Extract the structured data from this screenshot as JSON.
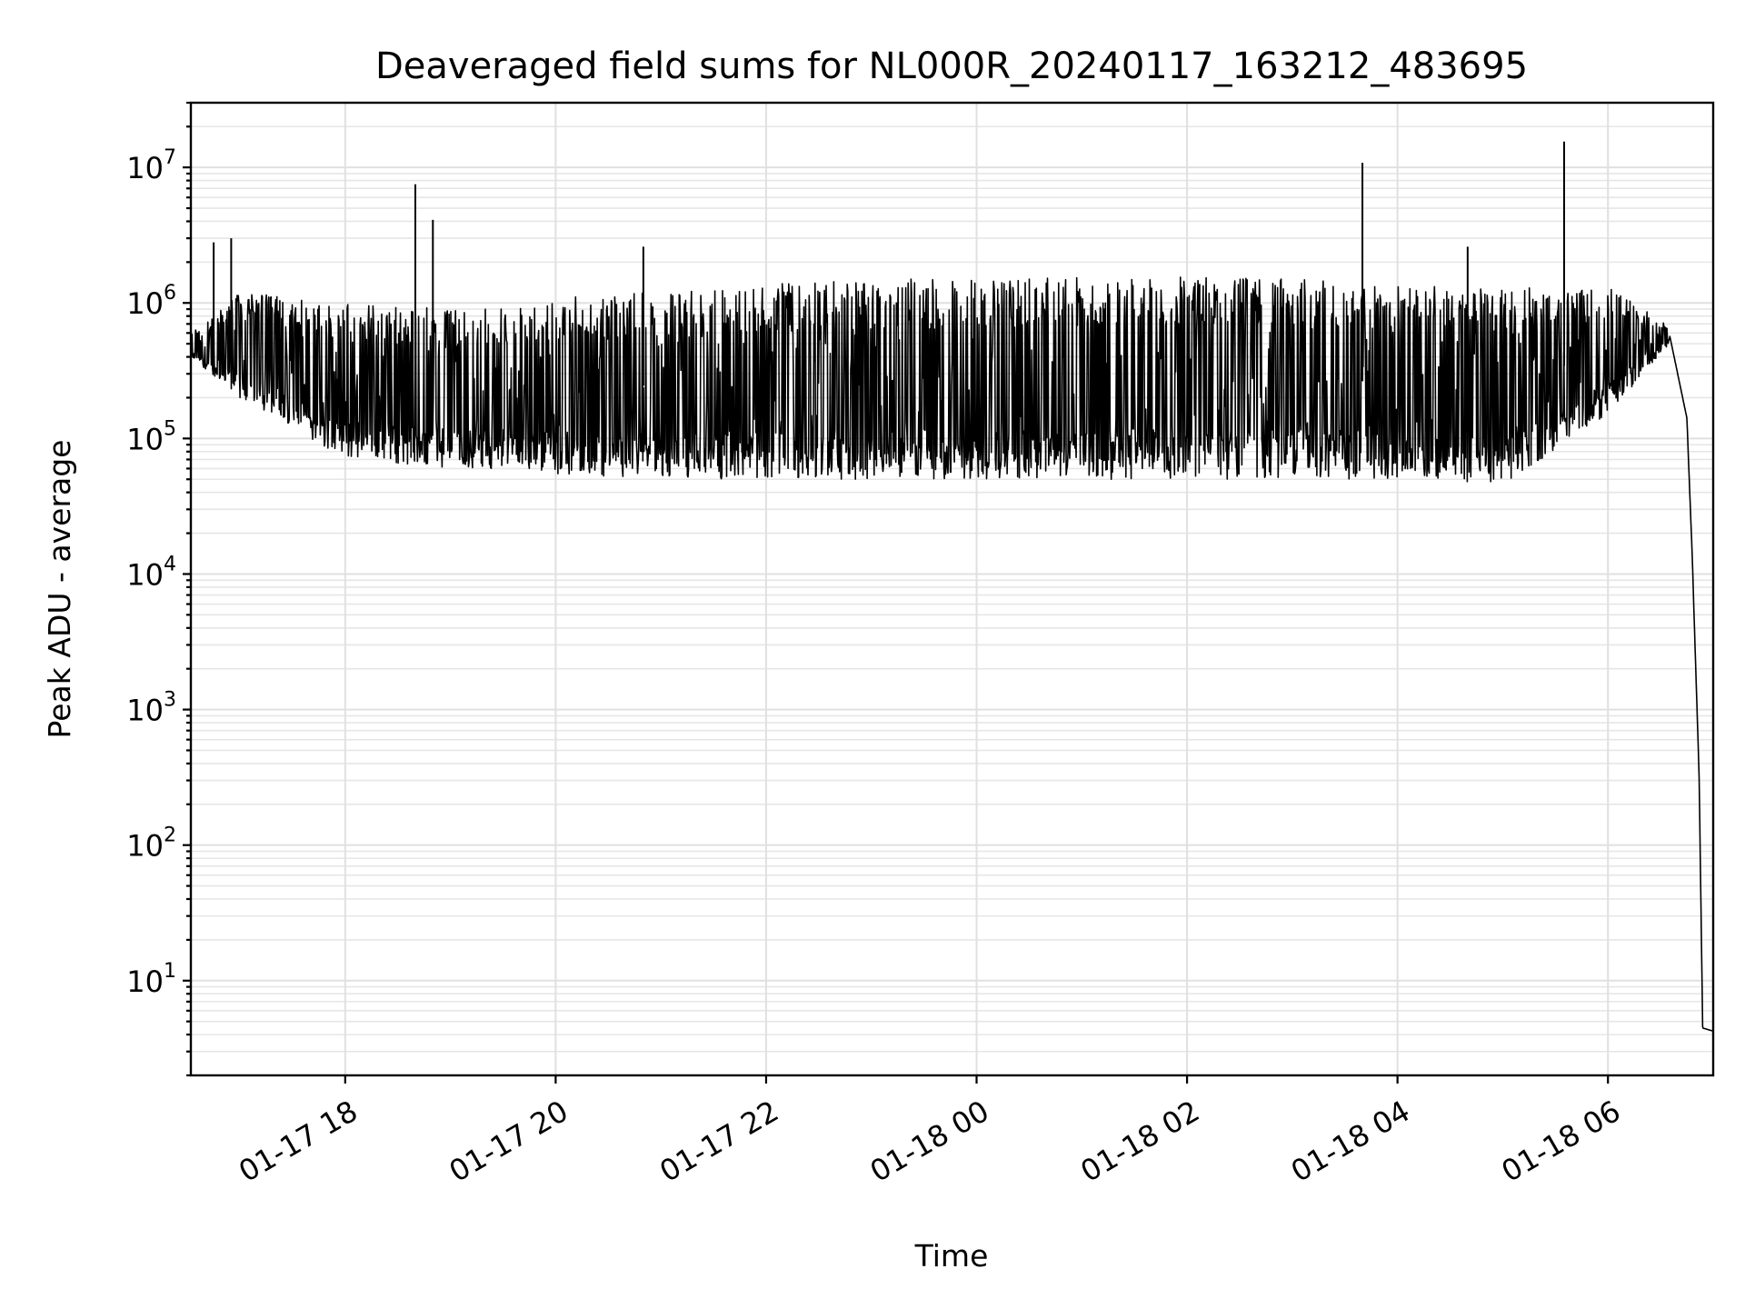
{
  "chart_data": {
    "type": "line",
    "title": "Deaveraged field sums for NL000R_20240117_163212_483695",
    "xlabel": "Time",
    "ylabel": "Peak ADU - average",
    "yscale": "log",
    "grid": true,
    "xlim": [
      "2024-01-17 16:32",
      "2024-01-18 07:00"
    ],
    "ylim": [
      2,
      30000000
    ],
    "x_ticks": [
      "01-17 18",
      "01-17 20",
      "01-17 22",
      "01-18 00",
      "01-18 02",
      "01-18 04",
      "01-18 06"
    ],
    "y_ticks": [
      {
        "base": "10",
        "exp": "1",
        "value": 10
      },
      {
        "base": "10",
        "exp": "2",
        "value": 100
      },
      {
        "base": "10",
        "exp": "3",
        "value": 1000
      },
      {
        "base": "10",
        "exp": "4",
        "value": 10000
      },
      {
        "base": "10",
        "exp": "5",
        "value": 100000
      },
      {
        "base": "10",
        "exp": "6",
        "value": 1000000
      },
      {
        "base": "10",
        "exp": "7",
        "value": 10000000
      }
    ],
    "series": [
      {
        "color": "#000000",
        "envelope": [
          {
            "x": "2024-01-17 16:32",
            "low": 400000,
            "high": 600000
          },
          {
            "x": "2024-01-17 17:00",
            "low": 200000,
            "high": 1200000
          },
          {
            "x": "2024-01-17 18:00",
            "low": 70000,
            "high": 1000000
          },
          {
            "x": "2024-01-17 19:00",
            "low": 60000,
            "high": 900000
          },
          {
            "x": "2024-01-17 20:00",
            "low": 55000,
            "high": 1100000
          },
          {
            "x": "2024-01-17 21:00",
            "low": 50000,
            "high": 1200000
          },
          {
            "x": "2024-01-17 22:00",
            "low": 50000,
            "high": 1400000
          },
          {
            "x": "2024-01-17 23:00",
            "low": 50000,
            "high": 1500000
          },
          {
            "x": "2024-01-18 00:00",
            "low": 50000,
            "high": 1500000
          },
          {
            "x": "2024-01-18 01:00",
            "low": 50000,
            "high": 1550000
          },
          {
            "x": "2024-01-18 02:00",
            "low": 50000,
            "high": 1550000
          },
          {
            "x": "2024-01-18 03:00",
            "low": 50000,
            "high": 1500000
          },
          {
            "x": "2024-01-18 04:00",
            "low": 50000,
            "high": 1350000
          },
          {
            "x": "2024-01-18 05:00",
            "low": 45000,
            "high": 1300000
          },
          {
            "x": "2024-01-18 06:00",
            "low": 150000,
            "high": 1300000
          },
          {
            "x": "2024-01-18 06:35",
            "low": 500000,
            "high": 700000
          },
          {
            "x": "2024-01-18 06:45",
            "low": 100000,
            "high": 200000
          },
          {
            "x": "2024-01-18 06:48",
            "low": 10000,
            "high": 20000
          },
          {
            "x": "2024-01-18 06:52",
            "low": 100,
            "high": 1000
          },
          {
            "x": "2024-01-18 06:54",
            "low": 4,
            "high": 5
          },
          {
            "x": "2024-01-18 07:00",
            "low": 4,
            "high": 4.5
          }
        ]
      }
    ],
    "peaks": [
      {
        "x": "2024-01-17 16:45",
        "y": 2800000
      },
      {
        "x": "2024-01-17 16:55",
        "y": 3000000
      },
      {
        "x": "2024-01-17 18:40",
        "y": 7500000
      },
      {
        "x": "2024-01-17 18:50",
        "y": 4100000
      },
      {
        "x": "2024-01-17 20:50",
        "y": 2600000
      },
      {
        "x": "2024-01-18 03:40",
        "y": 10800000
      },
      {
        "x": "2024-01-18 04:40",
        "y": 2600000
      },
      {
        "x": "2024-01-18 05:35",
        "y": 15500000
      }
    ]
  }
}
